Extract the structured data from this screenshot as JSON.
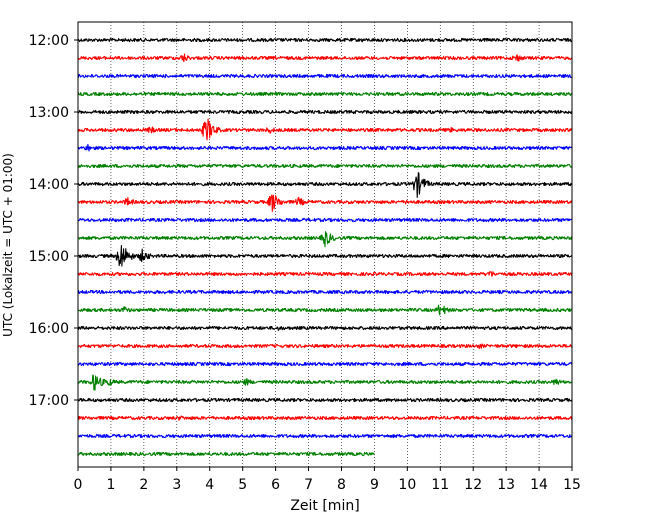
{
  "chart_data": {
    "type": "line",
    "title": "",
    "xlabel": "Zeit  [min]",
    "ylabel": "UTC (Lokalzeit = UTC + 01:00)",
    "xlim": [
      0,
      15
    ],
    "x_ticks": [
      "0",
      "1",
      "2",
      "3",
      "4",
      "5",
      "6",
      "7",
      "8",
      "9",
      "10",
      "11",
      "12",
      "13",
      "14",
      "15"
    ],
    "y_ticks": [
      "12:00",
      "13:00",
      "14:00",
      "15:00",
      "16:00",
      "17:00"
    ],
    "grid": "vertical dotted",
    "trace_interval_minutes": 15,
    "colors": {
      "black": "#000000",
      "red": "#ff0000",
      "blue": "#0000ff",
      "green": "#008000"
    },
    "traces": [
      {
        "start": "12:00",
        "color": "black",
        "end_min": 15,
        "events": [
          {
            "t": 5.5,
            "amp": 2
          },
          {
            "t": 8.6,
            "amp": 2.5
          }
        ]
      },
      {
        "start": "12:15",
        "color": "red",
        "end_min": 15,
        "events": [
          {
            "t": 3.2,
            "amp": 5
          },
          {
            "t": 13.3,
            "amp": 5
          }
        ]
      },
      {
        "start": "12:30",
        "color": "blue",
        "end_min": 15,
        "events": []
      },
      {
        "start": "12:45",
        "color": "green",
        "end_min": 15,
        "events": [
          {
            "t": 4.0,
            "amp": 2
          }
        ]
      },
      {
        "start": "13:00",
        "color": "black",
        "end_min": 15,
        "events": [
          {
            "t": 10.3,
            "amp": 2
          }
        ]
      },
      {
        "start": "13:15",
        "color": "red",
        "end_min": 15,
        "events": [
          {
            "t": 2.2,
            "amp": 4
          },
          {
            "t": 3.9,
            "amp": 14
          },
          {
            "t": 5.8,
            "amp": 4
          },
          {
            "t": 11.3,
            "amp": 3
          }
        ]
      },
      {
        "start": "13:30",
        "color": "blue",
        "end_min": 15,
        "events": [
          {
            "t": 0.3,
            "amp": 4
          }
        ]
      },
      {
        "start": "13:45",
        "color": "green",
        "end_min": 15,
        "events": []
      },
      {
        "start": "14:00",
        "color": "black",
        "end_min": 15,
        "events": [
          {
            "t": 10.3,
            "amp": 14
          }
        ]
      },
      {
        "start": "14:15",
        "color": "red",
        "end_min": 15,
        "events": [
          {
            "t": 1.5,
            "amp": 5
          },
          {
            "t": 5.9,
            "amp": 11
          },
          {
            "t": 6.7,
            "amp": 5
          },
          {
            "t": 10.0,
            "amp": 3
          }
        ]
      },
      {
        "start": "14:30",
        "color": "blue",
        "end_min": 15,
        "events": []
      },
      {
        "start": "14:45",
        "color": "green",
        "end_min": 15,
        "events": [
          {
            "t": 7.5,
            "amp": 9
          }
        ]
      },
      {
        "start": "15:00",
        "color": "black",
        "end_min": 15,
        "events": [
          {
            "t": 1.3,
            "amp": 16
          },
          {
            "t": 1.95,
            "amp": 7
          },
          {
            "t": 7.1,
            "amp": 2
          }
        ]
      },
      {
        "start": "15:15",
        "color": "red",
        "end_min": 15,
        "events": [
          {
            "t": 12.5,
            "amp": 4
          }
        ]
      },
      {
        "start": "15:30",
        "color": "blue",
        "end_min": 15,
        "events": []
      },
      {
        "start": "15:45",
        "color": "green",
        "end_min": 15,
        "events": [
          {
            "t": 1.4,
            "amp": 4
          },
          {
            "t": 11.0,
            "amp": 7
          }
        ]
      },
      {
        "start": "16:00",
        "color": "black",
        "end_min": 15,
        "events": [
          {
            "t": 6.1,
            "amp": 3
          }
        ]
      },
      {
        "start": "16:15",
        "color": "red",
        "end_min": 15,
        "events": [
          {
            "t": 12.2,
            "amp": 3
          }
        ]
      },
      {
        "start": "16:30",
        "color": "blue",
        "end_min": 15,
        "events": []
      },
      {
        "start": "16:45",
        "color": "green",
        "end_min": 15,
        "events": [
          {
            "t": 0.5,
            "amp": 10
          },
          {
            "t": 0.9,
            "amp": 5
          },
          {
            "t": 5.1,
            "amp": 4
          },
          {
            "t": 14.5,
            "amp": 4
          }
        ]
      },
      {
        "start": "17:00",
        "color": "black",
        "end_min": 15,
        "events": []
      },
      {
        "start": "17:15",
        "color": "red",
        "end_min": 15,
        "events": [
          {
            "t": 3.1,
            "amp": 3
          }
        ]
      },
      {
        "start": "17:30",
        "color": "blue",
        "end_min": 15,
        "events": []
      },
      {
        "start": "17:45",
        "color": "green",
        "end_min": 9.0,
        "events": []
      }
    ]
  }
}
